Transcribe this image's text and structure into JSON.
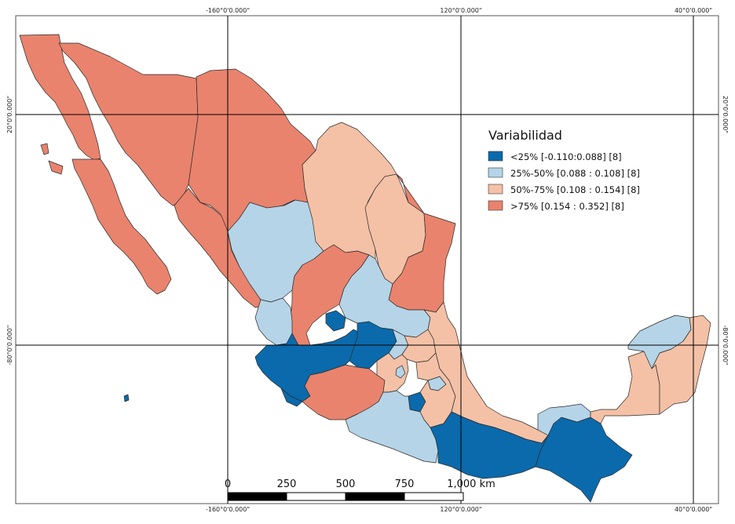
{
  "legend": {
    "title": "Variabilidad",
    "classes": [
      {
        "label": "<25%  [-0.110:0.088]  [8]",
        "color": "#0a6aac"
      },
      {
        "label": "25%-50%  [0.088 : 0.108]  [8]",
        "color": "#b5d4e7"
      },
      {
        "label": "50%-75%  [0.108 : 0.154]  [8]",
        "color": "#f4c1a6"
      },
      {
        "label": ">75%  [0.154 : 0.352]  [8]",
        "color": "#e9836d"
      }
    ]
  },
  "grid_labels": {
    "top": [
      "-160°0'0.000\"",
      "120°0'0.000\"",
      "40°0'0.000\""
    ],
    "bottom": [
      "-160°0'0.000\"",
      "120°0'0.000\"",
      "40°0'0.000\""
    ],
    "left": [
      "20°0'0.000\"",
      "-80°0'0.000\""
    ],
    "right": [
      "20°0'0.000\"",
      "-80°0'0.000\""
    ]
  },
  "scale_bar": {
    "ticks": [
      "0",
      "250",
      "500",
      "750",
      "1,000 km"
    ]
  },
  "colors": {
    "q1": "#0a6aac",
    "q2": "#b5d4e7",
    "q3": "#f4c1a6",
    "q4": "#e9836d"
  }
}
